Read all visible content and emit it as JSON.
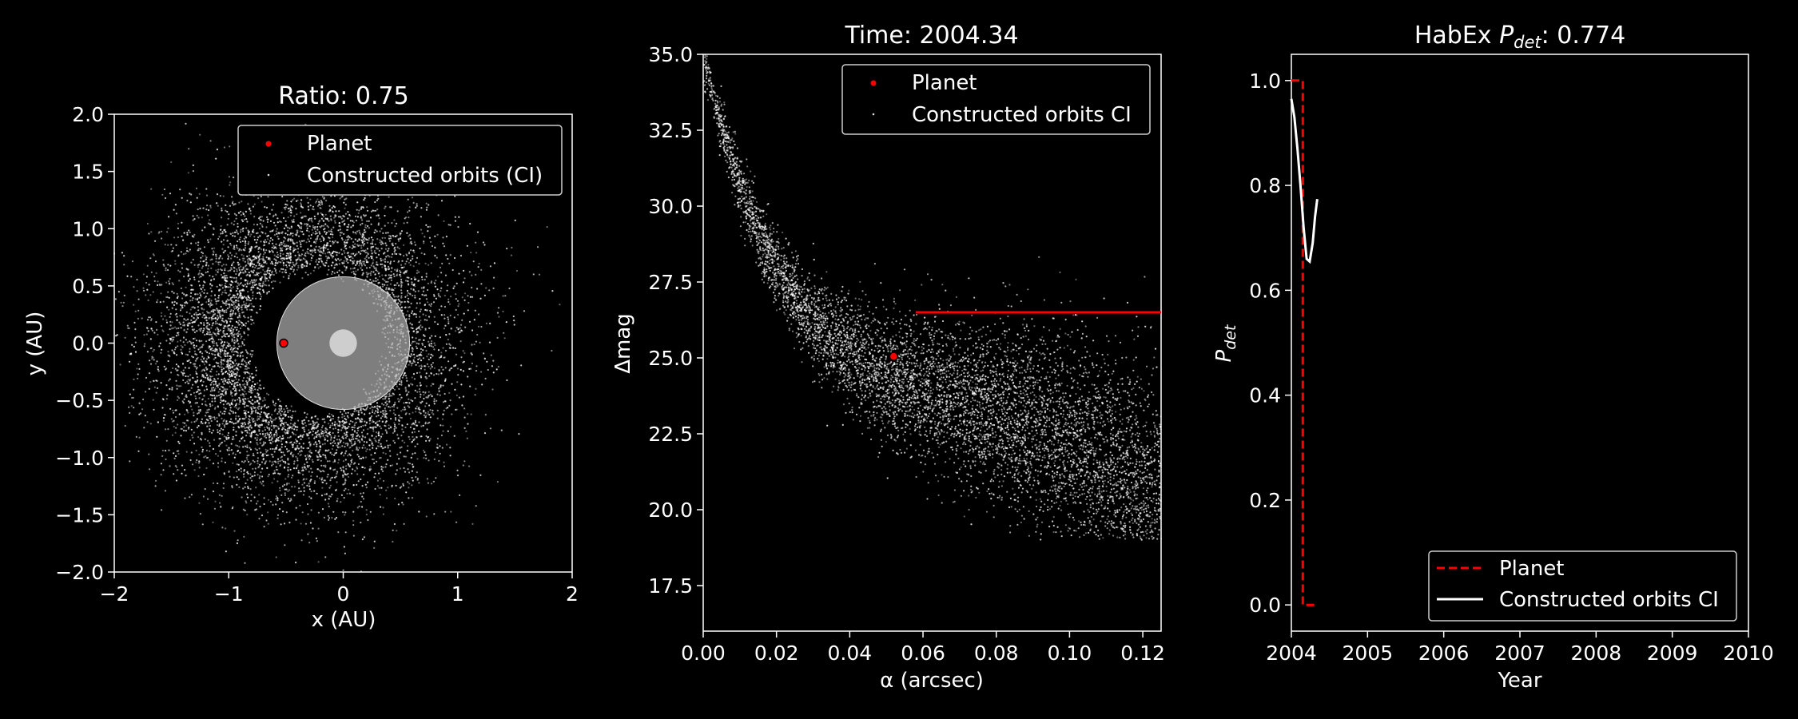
{
  "chart_data": [
    {
      "type": "scatter",
      "title": "Ratio: 0.75",
      "xlabel": "x (AU)",
      "ylabel": "y (AU)",
      "xlim": [
        -2,
        2
      ],
      "ylim": [
        -2,
        2
      ],
      "xticks": [
        "−2",
        "−1",
        "0",
        "1",
        "2"
      ],
      "yticks": [
        "−2.0",
        "−1.5",
        "−1.0",
        "−0.5",
        "0.0",
        "0.5",
        "1.0",
        "1.5",
        "2.0"
      ],
      "legend_position": "top-right",
      "series": [
        {
          "name": "Planet",
          "color": "#ff0000",
          "points": [
            [
              -0.52,
              0.0
            ]
          ]
        },
        {
          "name": "Constructed orbits (CI)",
          "color": "#ffffff",
          "description_of_distribution": "crescent-shaped cloud of points, denser on the left side"
        }
      ],
      "regions": [
        {
          "shape": "circle",
          "center": [
            0,
            0
          ],
          "radius": 0.58,
          "fill": "#b4b4b4"
        },
        {
          "shape": "circle",
          "center": [
            0,
            0
          ],
          "radius": 0.12,
          "fill": "#dcdcdc"
        }
      ]
    },
    {
      "type": "scatter",
      "title": "Time: 2004.34",
      "xlabel": "α (arcsec)",
      "ylabel": "Δmag",
      "xlim": [
        0.0,
        0.125
      ],
      "ylim": [
        16.0,
        35.0
      ],
      "xticks": [
        "0.00",
        "0.02",
        "0.04",
        "0.06",
        "0.08",
        "0.10",
        "0.12"
      ],
      "yticks": [
        "17.5",
        "20.0",
        "22.5",
        "25.0",
        "27.5",
        "30.0",
        "32.5",
        "35.0"
      ],
      "legend_position": "top-right",
      "series": [
        {
          "name": "Planet",
          "color": "#ff0000",
          "points": [
            [
              0.052,
              25.05
            ]
          ]
        },
        {
          "name": "Constructed orbits CI",
          "color": "#ffffff"
        }
      ],
      "lines": [
        {
          "color": "#ff0000",
          "x": [
            0.058,
            0.125
          ],
          "y": [
            26.5,
            26.5
          ]
        }
      ]
    },
    {
      "type": "line",
      "title_prefix": "HabEx ",
      "title_var": "P",
      "title_sub": "det",
      "title_suffix": ": 0.774",
      "xlabel": "Year",
      "ylabel_var": "P",
      "ylabel_sub": "det",
      "xlim": [
        2004,
        2010
      ],
      "ylim": [
        -0.05,
        1.05
      ],
      "xticks": [
        "2004",
        "2005",
        "2006",
        "2007",
        "2008",
        "2009",
        "2010"
      ],
      "yticks": [
        "0.0",
        "0.2",
        "0.4",
        "0.6",
        "0.8",
        "1.0"
      ],
      "legend_position": "bottom-right",
      "series": [
        {
          "name": "Planet",
          "color": "#ff0000",
          "style": "dashed",
          "x": [
            2004.0,
            2004.15,
            2004.15,
            2004.34
          ],
          "y": [
            1.0,
            1.0,
            0.0,
            0.0
          ]
        },
        {
          "name": "Constructed orbits CI",
          "color": "#ffffff",
          "style": "solid",
          "x": [
            2004.0,
            2004.04,
            2004.08,
            2004.12,
            2004.16,
            2004.2,
            2004.24,
            2004.28,
            2004.31,
            2004.34
          ],
          "y": [
            0.965,
            0.93,
            0.87,
            0.8,
            0.72,
            0.66,
            0.655,
            0.69,
            0.74,
            0.774
          ]
        }
      ]
    }
  ]
}
